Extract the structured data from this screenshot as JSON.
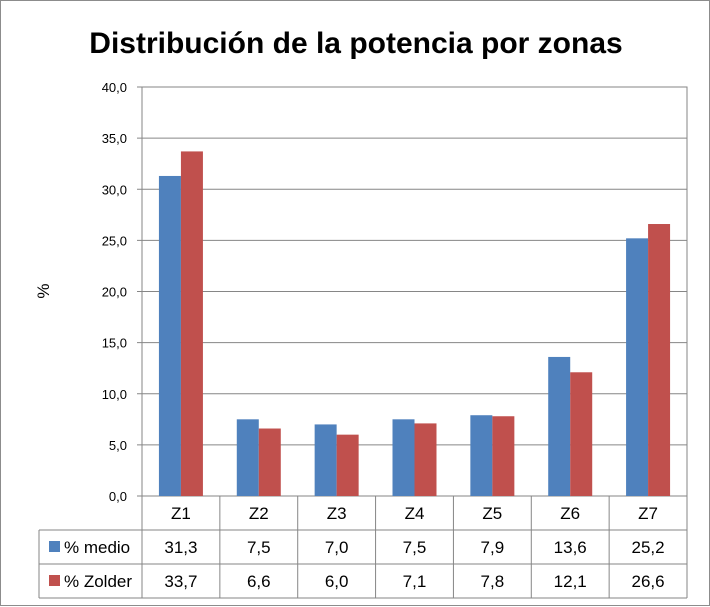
{
  "chart_data": {
    "type": "bar",
    "title": "Distribución de la potencia por zonas",
    "xlabel": "",
    "ylabel": "%",
    "ylim": [
      0,
      40
    ],
    "yticks": [
      "0,0",
      "5,0",
      "10,0",
      "15,0",
      "20,0",
      "25,0",
      "30,0",
      "35,0",
      "40,0"
    ],
    "categories": [
      "Z1",
      "Z2",
      "Z3",
      "Z4",
      "Z5",
      "Z6",
      "Z7"
    ],
    "series": [
      {
        "name": "% medio",
        "color": "#4f81bd",
        "values": [
          31.3,
          7.5,
          7.0,
          7.5,
          7.9,
          13.6,
          25.2
        ],
        "labels": [
          "31,3",
          "7,5",
          "7,0",
          "7,5",
          "7,9",
          "13,6",
          "25,2"
        ]
      },
      {
        "name": "% Zolder",
        "color": "#c0504d",
        "values": [
          33.7,
          6.6,
          6.0,
          7.1,
          7.8,
          12.1,
          26.6
        ],
        "labels": [
          "33,7",
          "6,6",
          "6,0",
          "7,1",
          "7,8",
          "12,1",
          "26,6"
        ]
      }
    ],
    "grid": true,
    "legend": "data-table"
  }
}
